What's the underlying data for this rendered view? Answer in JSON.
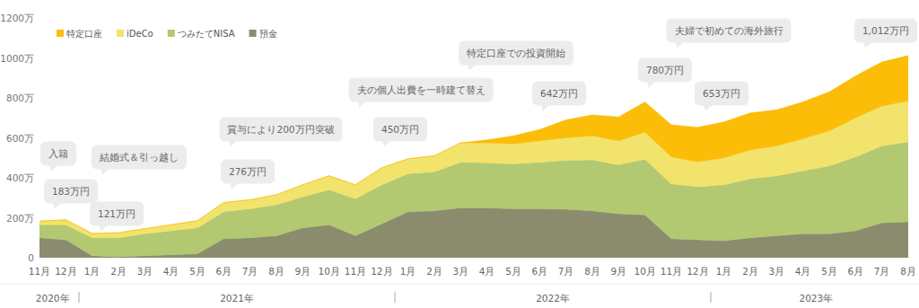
{
  "chart_data": {
    "type": "area",
    "stacked": true,
    "legend": "top-left",
    "grid": false,
    "categories": [
      "11月",
      "12月",
      "1月",
      "2月",
      "3月",
      "4月",
      "5月",
      "6月",
      "7月",
      "8月",
      "9月",
      "10月",
      "11月",
      "12月",
      "1月",
      "2月",
      "3月",
      "4月",
      "5月",
      "6月",
      "7月",
      "8月",
      "9月",
      "10月",
      "11月",
      "12月",
      "1月",
      "2月",
      "3月",
      "4月",
      "5月",
      "6月",
      "7月",
      "8月"
    ],
    "year_groups": [
      {
        "label": "2020年",
        "months": 2
      },
      {
        "label": "2021年",
        "months": 12
      },
      {
        "label": "2022年",
        "months": 12
      },
      {
        "label": "2023年",
        "months": 8
      }
    ],
    "series": [
      {
        "name": "特定口座",
        "color": "#fbbd08",
        "values": [
          0,
          0,
          0,
          0,
          0,
          0,
          0,
          0,
          0,
          0,
          0,
          0,
          0,
          0,
          0,
          0,
          0,
          15,
          40,
          57,
          90,
          105,
          120,
          152,
          160,
          173,
          180,
          185,
          180,
          185,
          195,
          210,
          220,
          227
        ]
      },
      {
        "name": "iDeCo",
        "color": "#f2e36c",
        "values": [
          18,
          25,
          21,
          25,
          25,
          30,
          35,
          46,
          45,
          50,
          60,
          70,
          70,
          85,
          75,
          80,
          97,
          100,
          100,
          107,
          112,
          120,
          120,
          135,
          135,
          125,
          135,
          145,
          150,
          160,
          175,
          195,
          200,
          205
        ]
      },
      {
        "name": "つみたてNISA",
        "color": "#b2c972",
        "values": [
          65,
          75,
          90,
          95,
          110,
          120,
          130,
          135,
          145,
          155,
          155,
          175,
          185,
          195,
          190,
          195,
          228,
          225,
          225,
          233,
          245,
          255,
          245,
          278,
          275,
          265,
          280,
          295,
          300,
          315,
          340,
          370,
          385,
          400
        ]
      },
      {
        "name": "預金",
        "color": "#8b8c6e",
        "values": [
          100,
          90,
          10,
          5,
          10,
          15,
          20,
          95,
          100,
          110,
          150,
          165,
          110,
          170,
          230,
          235,
          250,
          250,
          245,
          245,
          243,
          235,
          220,
          215,
          95,
          90,
          85,
          100,
          110,
          120,
          120,
          135,
          175,
          180
        ]
      }
    ],
    "ylim": [
      0,
      1200
    ],
    "yticks": [
      0,
      {
        "value": 200,
        "label": "200万"
      },
      {
        "value": 400,
        "label": "400万"
      },
      {
        "value": 600,
        "label": "600万"
      },
      {
        "value": 800,
        "label": "800万"
      },
      {
        "value": 1000,
        "label": "1000万"
      },
      {
        "value": 1200,
        "label": "1200万"
      }
    ],
    "annotations": [
      "入籍",
      "183万円",
      "結婚式＆引っ越し",
      "121万円",
      "賞与により200万円突破",
      "276万円",
      "450万円",
      "夫の個人出費を一時建て替え",
      "特定口座での投資開始",
      "642万円",
      "780万円",
      "653万円",
      "夫婦で初めての海外旅行",
      "1,012万円"
    ]
  }
}
